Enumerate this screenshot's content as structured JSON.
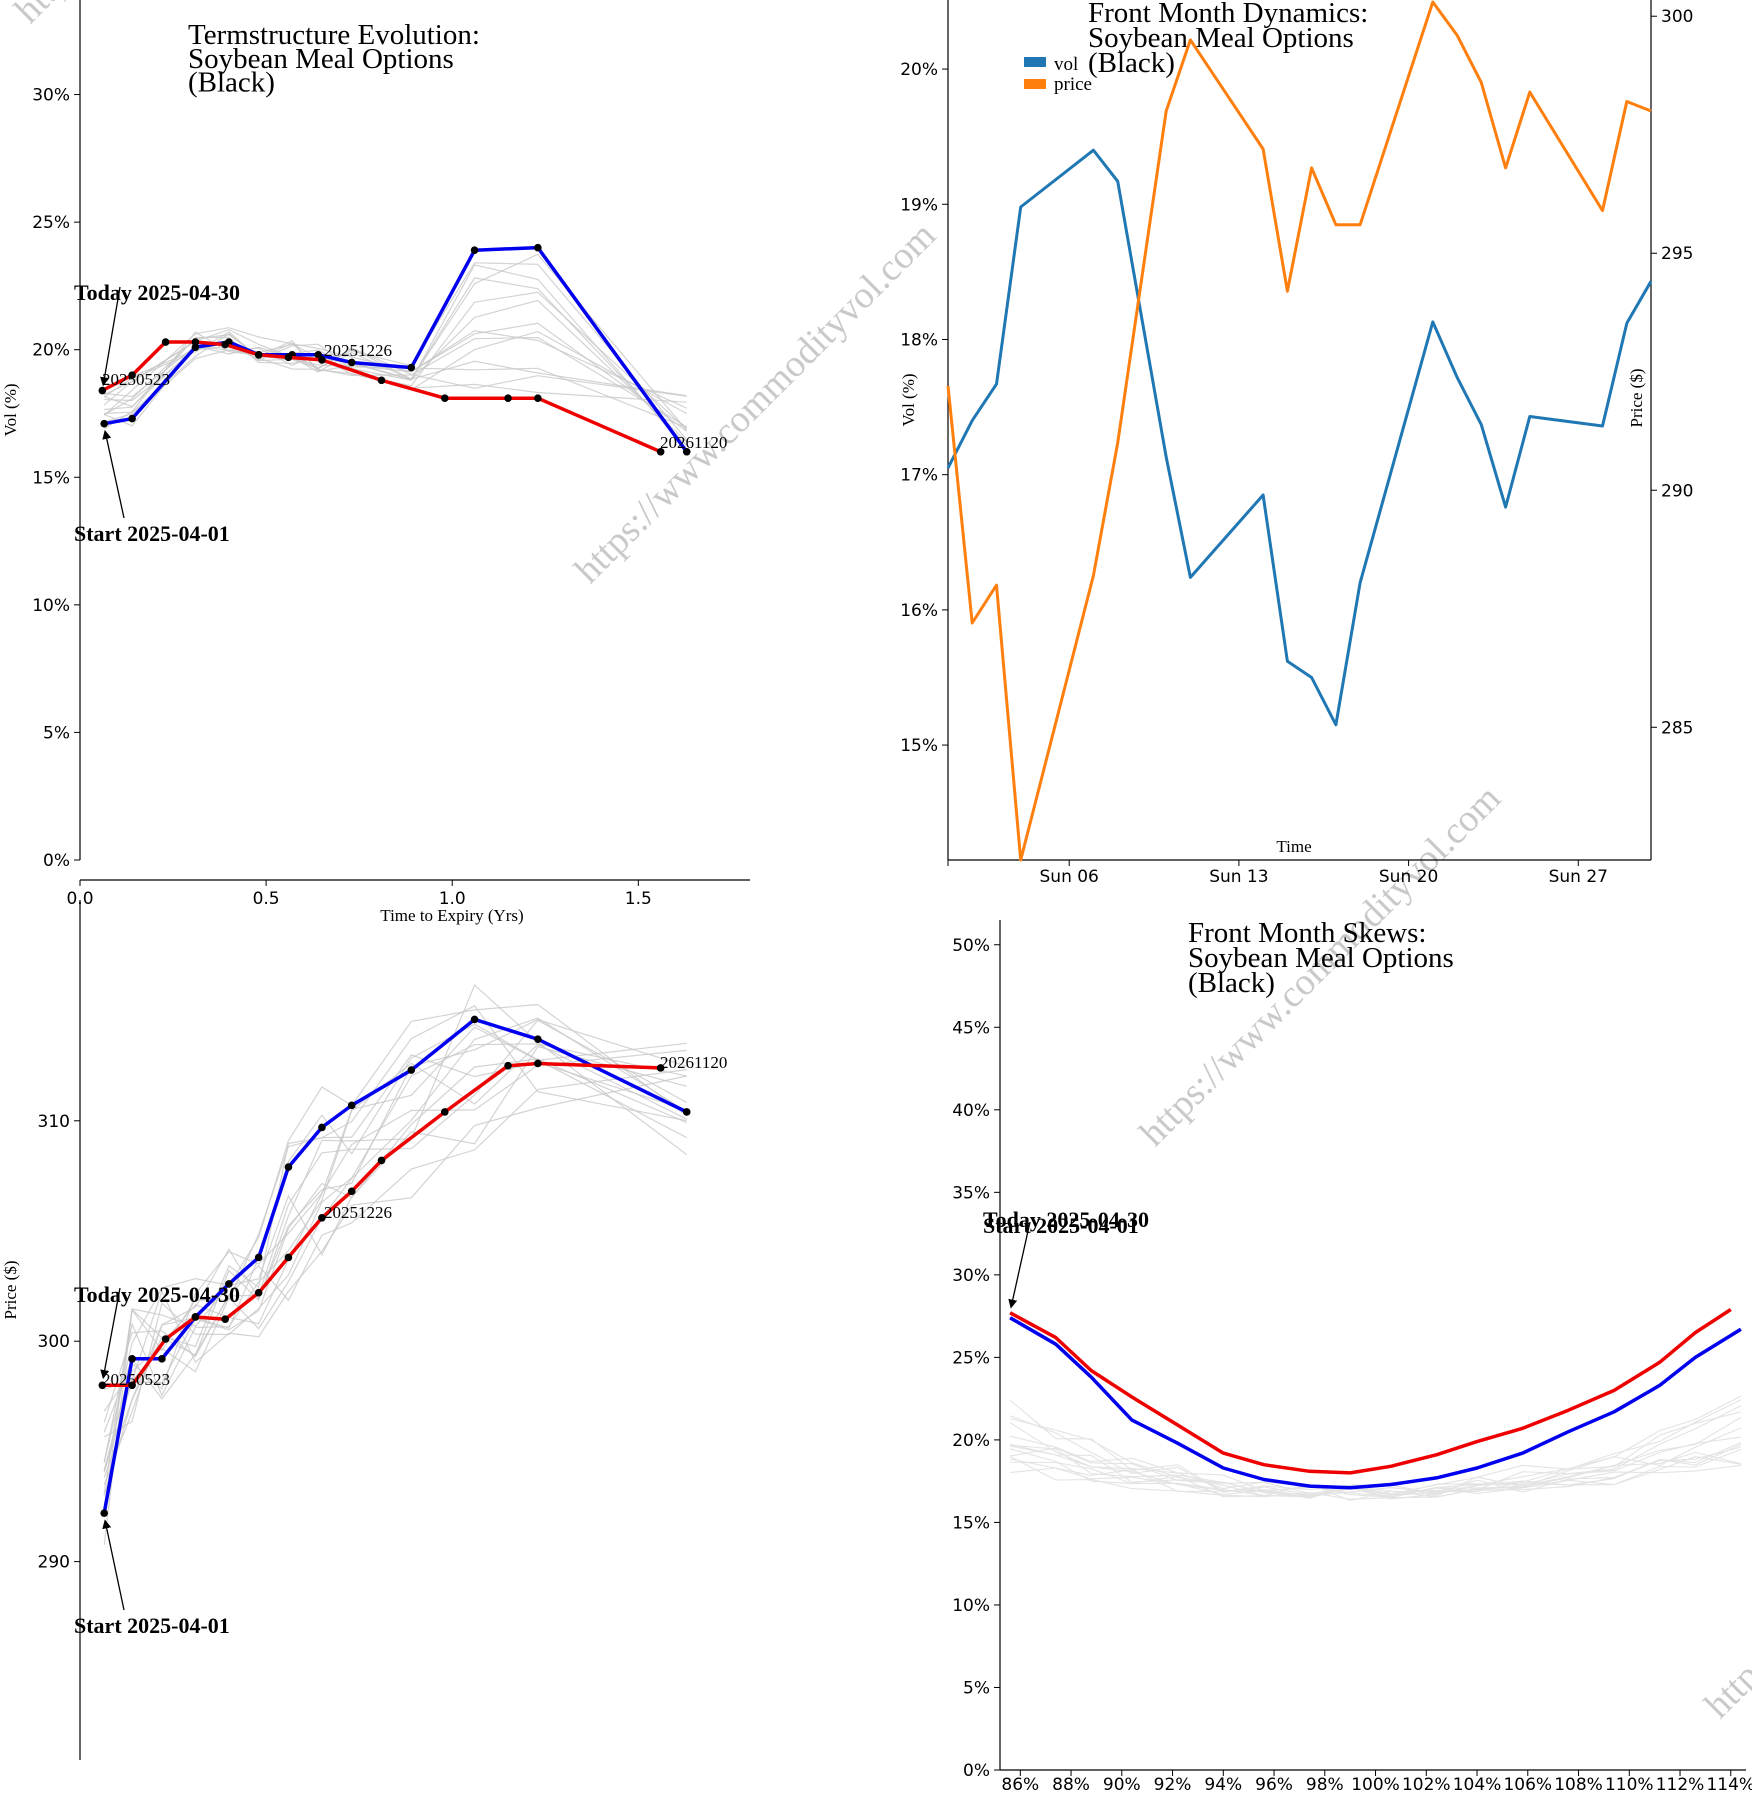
{
  "watermark": "https://www.commodityvol.com",
  "colors": {
    "start": "#0000ee",
    "today": "#ee0000",
    "history": "#c8c8c8",
    "vol": "#1f77b4",
    "price": "#ff7f0e"
  },
  "chart_data": [
    {
      "id": "term_vol",
      "type": "line",
      "title": [
        "Termstructure Evolution:",
        "Soybean Meal Options",
        "(Black)"
      ],
      "xlabel": "Time to Expiry (Yrs)",
      "ylabel": "Vol (%)",
      "xlim": [
        0,
        1.8
      ],
      "ylim": [
        0,
        0.33
      ],
      "xticks": [
        0,
        0.5,
        1.0,
        1.5
      ],
      "xtick_labels": [
        "0.0",
        "0.5",
        "1.0",
        "1.5"
      ],
      "yticks": [
        0,
        0.05,
        0.1,
        0.15,
        0.2,
        0.25,
        0.3
      ],
      "ytick_labels": [
        "0%",
        "5%",
        "10%",
        "15%",
        "20%",
        "25%",
        "30%"
      ],
      "series": [
        {
          "name": "Start 2025-04-01",
          "role": "start",
          "x": [
            0.065,
            0.14,
            0.31,
            0.4,
            0.48,
            0.57,
            0.64,
            0.73,
            0.89,
            1.06,
            1.23,
            1.63
          ],
          "y": [
            0.171,
            0.173,
            0.201,
            0.203,
            0.198,
            0.198,
            0.198,
            0.195,
            0.193,
            0.239,
            0.24,
            0.16
          ]
        },
        {
          "name": "Today 2025-04-30",
          "role": "today",
          "x": [
            0.06,
            0.14,
            0.23,
            0.31,
            0.39,
            0.48,
            0.56,
            0.65,
            0.81,
            0.98,
            1.15,
            1.23,
            1.56
          ],
          "y": [
            0.184,
            0.19,
            0.203,
            0.203,
            0.202,
            0.198,
            0.197,
            0.196,
            0.188,
            0.181,
            0.181,
            0.181,
            0.16
          ]
        }
      ],
      "annotations": [
        {
          "text": "Today 2025-04-30",
          "bold": true
        },
        {
          "text": "Start 2025-04-01",
          "bold": true
        },
        {
          "text": "20250523"
        },
        {
          "text": "20251226"
        },
        {
          "text": "20261120"
        }
      ]
    },
    {
      "id": "front_dynamics",
      "type": "line",
      "title": [
        "Front Month Dynamics:",
        "Soybean Meal Options",
        "(Black)"
      ],
      "xlabel": "Time",
      "ylabel": "Vol (%)",
      "y2label": "Price ($)",
      "xlim": [
        1,
        30
      ],
      "ylim": [
        0.1415,
        0.204
      ],
      "y2lim": [
        282.2,
        300.3
      ],
      "xticks": [
        6,
        13,
        20,
        27
      ],
      "xtick_labels": [
        "Sun 06",
        "Sun 13",
        "Sun 20",
        "Sun 27"
      ],
      "yticks": [
        0.15,
        0.16,
        0.17,
        0.18,
        0.19,
        0.2
      ],
      "ytick_labels": [
        "15%",
        "16%",
        "17%",
        "18%",
        "19%",
        "20%"
      ],
      "y2ticks": [
        285,
        290,
        295,
        300
      ],
      "y2tick_labels": [
        "285",
        "290",
        "295",
        "300"
      ],
      "legend": [
        "vol",
        "price"
      ],
      "series": [
        {
          "name": "vol",
          "x": [
            1,
            2,
            3,
            4,
            7,
            8,
            10,
            11,
            14,
            15,
            16,
            17,
            18,
            21,
            22,
            23,
            24,
            25,
            28,
            29,
            30
          ],
          "y": [
            0.1705,
            0.174,
            0.1767,
            0.1898,
            0.194,
            0.1917,
            0.1713,
            0.1624,
            0.1685,
            0.1562,
            0.155,
            0.1515,
            0.162,
            0.1813,
            0.1772,
            0.1737,
            0.1676,
            0.1743,
            0.1736,
            0.1812,
            0.1843
          ]
        },
        {
          "name": "price",
          "x": [
            1,
            2,
            3,
            4,
            7,
            8,
            10,
            11,
            14,
            15,
            16,
            17,
            18,
            21,
            22,
            23,
            24,
            25,
            28,
            29,
            30
          ],
          "y": [
            292.2,
            287.2,
            288.0,
            282.2,
            288.2,
            291.0,
            298.0,
            299.5,
            297.2,
            294.2,
            296.8,
            295.6,
            295.6,
            300.3,
            299.6,
            298.6,
            296.8,
            298.4,
            295.9,
            298.2,
            298.0
          ]
        }
      ]
    },
    {
      "id": "term_price",
      "type": "line",
      "ylabel": "Price ($)",
      "xlim": [
        0,
        1.8
      ],
      "ylim": [
        281.0,
        319.2
      ],
      "yticks": [
        290,
        300,
        310
      ],
      "ytick_labels": [
        "290",
        "300",
        "310"
      ],
      "series": [
        {
          "name": "Start 2025-04-01",
          "role": "start",
          "x": [
            0.065,
            0.14,
            0.22,
            0.31,
            0.4,
            0.48,
            0.56,
            0.65,
            0.73,
            0.89,
            1.06,
            1.23,
            1.63
          ],
          "y": [
            292.2,
            299.2,
            299.2,
            301.1,
            302.6,
            303.8,
            307.9,
            309.7,
            310.7,
            312.3,
            314.6,
            313.7,
            310.4
          ]
        },
        {
          "name": "Today 2025-04-30",
          "role": "today",
          "x": [
            0.06,
            0.14,
            0.23,
            0.31,
            0.39,
            0.48,
            0.56,
            0.65,
            0.73,
            0.81,
            0.98,
            1.15,
            1.23,
            1.56
          ],
          "y": [
            298.0,
            298.0,
            300.1,
            301.1,
            301.0,
            302.2,
            303.8,
            305.6,
            306.8,
            308.2,
            310.4,
            312.5,
            312.6,
            312.4
          ]
        }
      ],
      "annotations": [
        {
          "text": "Today 2025-04-30",
          "bold": true
        },
        {
          "text": "Start 2025-04-01",
          "bold": true
        },
        {
          "text": "20250523"
        },
        {
          "text": "20251226"
        },
        {
          "text": "20261120"
        }
      ]
    },
    {
      "id": "front_skews",
      "type": "line",
      "title": [
        "Front Month Skews:",
        "Soybean Meal Options",
        "(Black)"
      ],
      "xlim": [
        0.852,
        1.146
      ],
      "ylim": [
        0,
        0.515
      ],
      "xticks": [
        0.86,
        0.88,
        0.9,
        0.92,
        0.94,
        0.96,
        0.98,
        1.0,
        1.02,
        1.04,
        1.06,
        1.08,
        1.1,
        1.12,
        1.14
      ],
      "xtick_labels": [
        "86%",
        "88%",
        "90%",
        "92%",
        "94%",
        "96%",
        "98%",
        "100%",
        "102%",
        "104%",
        "106%",
        "108%",
        "110%",
        "112%",
        "114%"
      ],
      "yticks": [
        0,
        0.05,
        0.1,
        0.15,
        0.2,
        0.25,
        0.3,
        0.35,
        0.4,
        0.45,
        0.5
      ],
      "ytick_labels": [
        "0%",
        "5%",
        "10%",
        "15%",
        "20%",
        "25%",
        "30%",
        "35%",
        "40%",
        "45%",
        "50%"
      ],
      "series": [
        {
          "name": "Start 2025-04-01",
          "role": "start",
          "x": [
            0.856,
            0.874,
            0.888,
            0.904,
            0.922,
            0.94,
            0.956,
            0.974,
            0.99,
            1.006,
            1.024,
            1.04,
            1.058,
            1.076,
            1.094,
            1.112,
            1.126,
            1.144
          ],
          "y": [
            0.274,
            0.258,
            0.238,
            0.212,
            0.198,
            0.183,
            0.176,
            0.172,
            0.171,
            0.173,
            0.177,
            0.183,
            0.192,
            0.205,
            0.217,
            0.233,
            0.25,
            0.267
          ]
        },
        {
          "name": "Today 2025-04-30",
          "role": "today",
          "x": [
            0.856,
            0.874,
            0.888,
            0.904,
            0.922,
            0.94,
            0.956,
            0.974,
            0.99,
            1.006,
            1.024,
            1.04,
            1.058,
            1.076,
            1.094,
            1.112,
            1.126,
            1.14
          ],
          "y": [
            0.277,
            0.262,
            0.242,
            0.226,
            0.209,
            0.192,
            0.185,
            0.181,
            0.18,
            0.184,
            0.191,
            0.199,
            0.207,
            0.218,
            0.23,
            0.247,
            0.265,
            0.279
          ]
        }
      ],
      "annotations": [
        {
          "text": "Today 2025-04-30",
          "bold": true
        },
        {
          "text": "Start 2025-04-01",
          "bold": true
        }
      ]
    }
  ]
}
